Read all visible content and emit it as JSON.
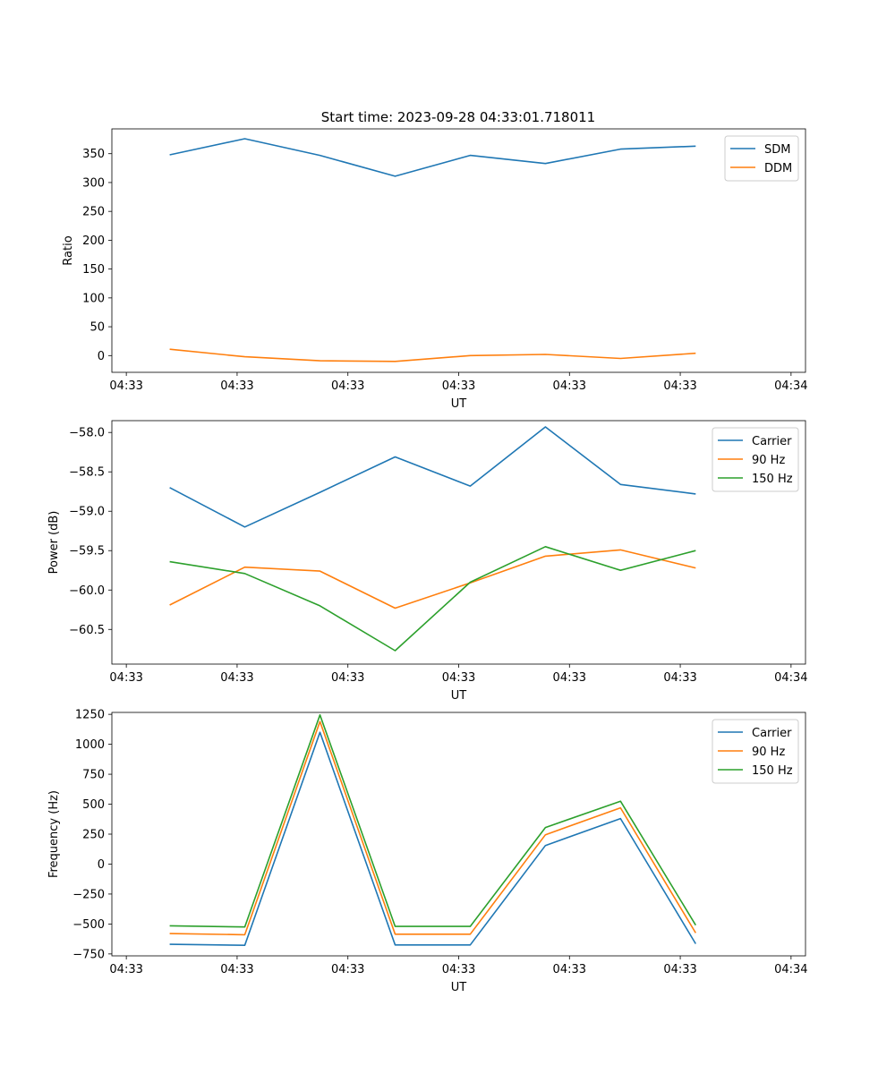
{
  "figure_title": "Start time: 2023-09-28 04:33:01.718011",
  "chart_data": [
    {
      "type": "line",
      "title": "Start time: 2023-09-28 04:33:01.718011",
      "xlabel": "UT",
      "ylabel": "Ratio",
      "x_tick_labels": [
        "04:33",
        "04:33",
        "04:33",
        "04:33",
        "04:33",
        "04:33",
        "04:34"
      ],
      "xlim": [
        0,
        6
      ],
      "x": [
        0.5,
        1.15,
        1.8,
        2.45,
        3.1,
        3.75,
        4.4,
        5.05
      ],
      "ylim": [
        -29,
        393
      ],
      "y_ticks": [
        0,
        50,
        100,
        150,
        200,
        250,
        300,
        350
      ],
      "legend_loc": "upper right",
      "series": [
        {
          "name": "SDM",
          "color": "#1f77b4",
          "values": [
            348,
            376,
            347,
            311,
            347,
            333,
            358,
            363
          ]
        },
        {
          "name": "DDM",
          "color": "#ff7f0e",
          "values": [
            11,
            -2,
            -9,
            -10,
            0,
            2,
            -5,
            4
          ]
        }
      ]
    },
    {
      "type": "line",
      "title": "",
      "xlabel": "UT",
      "ylabel": "Power (dB)",
      "x_tick_labels": [
        "04:33",
        "04:33",
        "04:33",
        "04:33",
        "04:33",
        "04:33",
        "04:34"
      ],
      "xlim": [
        0,
        6
      ],
      "x": [
        0.5,
        1.15,
        1.8,
        2.45,
        3.1,
        3.75,
        4.4,
        5.05
      ],
      "ylim": [
        -60.94,
        -57.85
      ],
      "y_ticks": [
        -60.5,
        -60.0,
        -59.5,
        -59.0,
        -58.5,
        -58.0
      ],
      "y_tick_labels": [
        "−60.5",
        "−60.0",
        "−59.5",
        "−59.0",
        "−58.5",
        "−58.0"
      ],
      "legend_loc": "upper right",
      "series": [
        {
          "name": "Carrier",
          "color": "#1f77b4",
          "values": [
            -58.7,
            -59.2,
            -58.76,
            -58.31,
            -58.68,
            -57.93,
            -58.66,
            -58.78
          ]
        },
        {
          "name": "90 Hz",
          "color": "#ff7f0e",
          "values": [
            -60.19,
            -59.71,
            -59.76,
            -60.23,
            -59.91,
            -59.57,
            -59.49,
            -59.72
          ]
        },
        {
          "name": "150 Hz",
          "color": "#2ca02c",
          "values": [
            -59.64,
            -59.79,
            -60.2,
            -60.77,
            -59.9,
            -59.45,
            -59.75,
            -59.5
          ]
        }
      ]
    },
    {
      "type": "line",
      "title": "",
      "xlabel": "UT",
      "ylabel": "Frequency (Hz)",
      "x_tick_labels": [
        "04:33",
        "04:33",
        "04:33",
        "04:33",
        "04:33",
        "04:33",
        "04:34"
      ],
      "xlim": [
        0,
        6
      ],
      "x": [
        0.5,
        1.15,
        1.8,
        2.45,
        3.1,
        3.75,
        4.4,
        5.05
      ],
      "ylim": [
        -766,
        1266
      ],
      "y_ticks": [
        -750,
        -500,
        -250,
        0,
        250,
        500,
        750,
        1000,
        1250
      ],
      "y_tick_labels": [
        "−750",
        "−500",
        "−250",
        "0",
        "250",
        "500",
        "750",
        "1000",
        "1250"
      ],
      "legend_loc": "upper right",
      "series": [
        {
          "name": "Carrier",
          "color": "#1f77b4",
          "values": [
            -670,
            -678,
            1100,
            -675,
            -675,
            155,
            380,
            -665
          ]
        },
        {
          "name": "90 Hz",
          "color": "#ff7f0e",
          "values": [
            -580,
            -590,
            1190,
            -585,
            -585,
            245,
            470,
            -575
          ]
        },
        {
          "name": "150 Hz",
          "color": "#2ca02c",
          "values": [
            -515,
            -525,
            1245,
            -520,
            -520,
            305,
            525,
            -510
          ]
        }
      ]
    }
  ]
}
